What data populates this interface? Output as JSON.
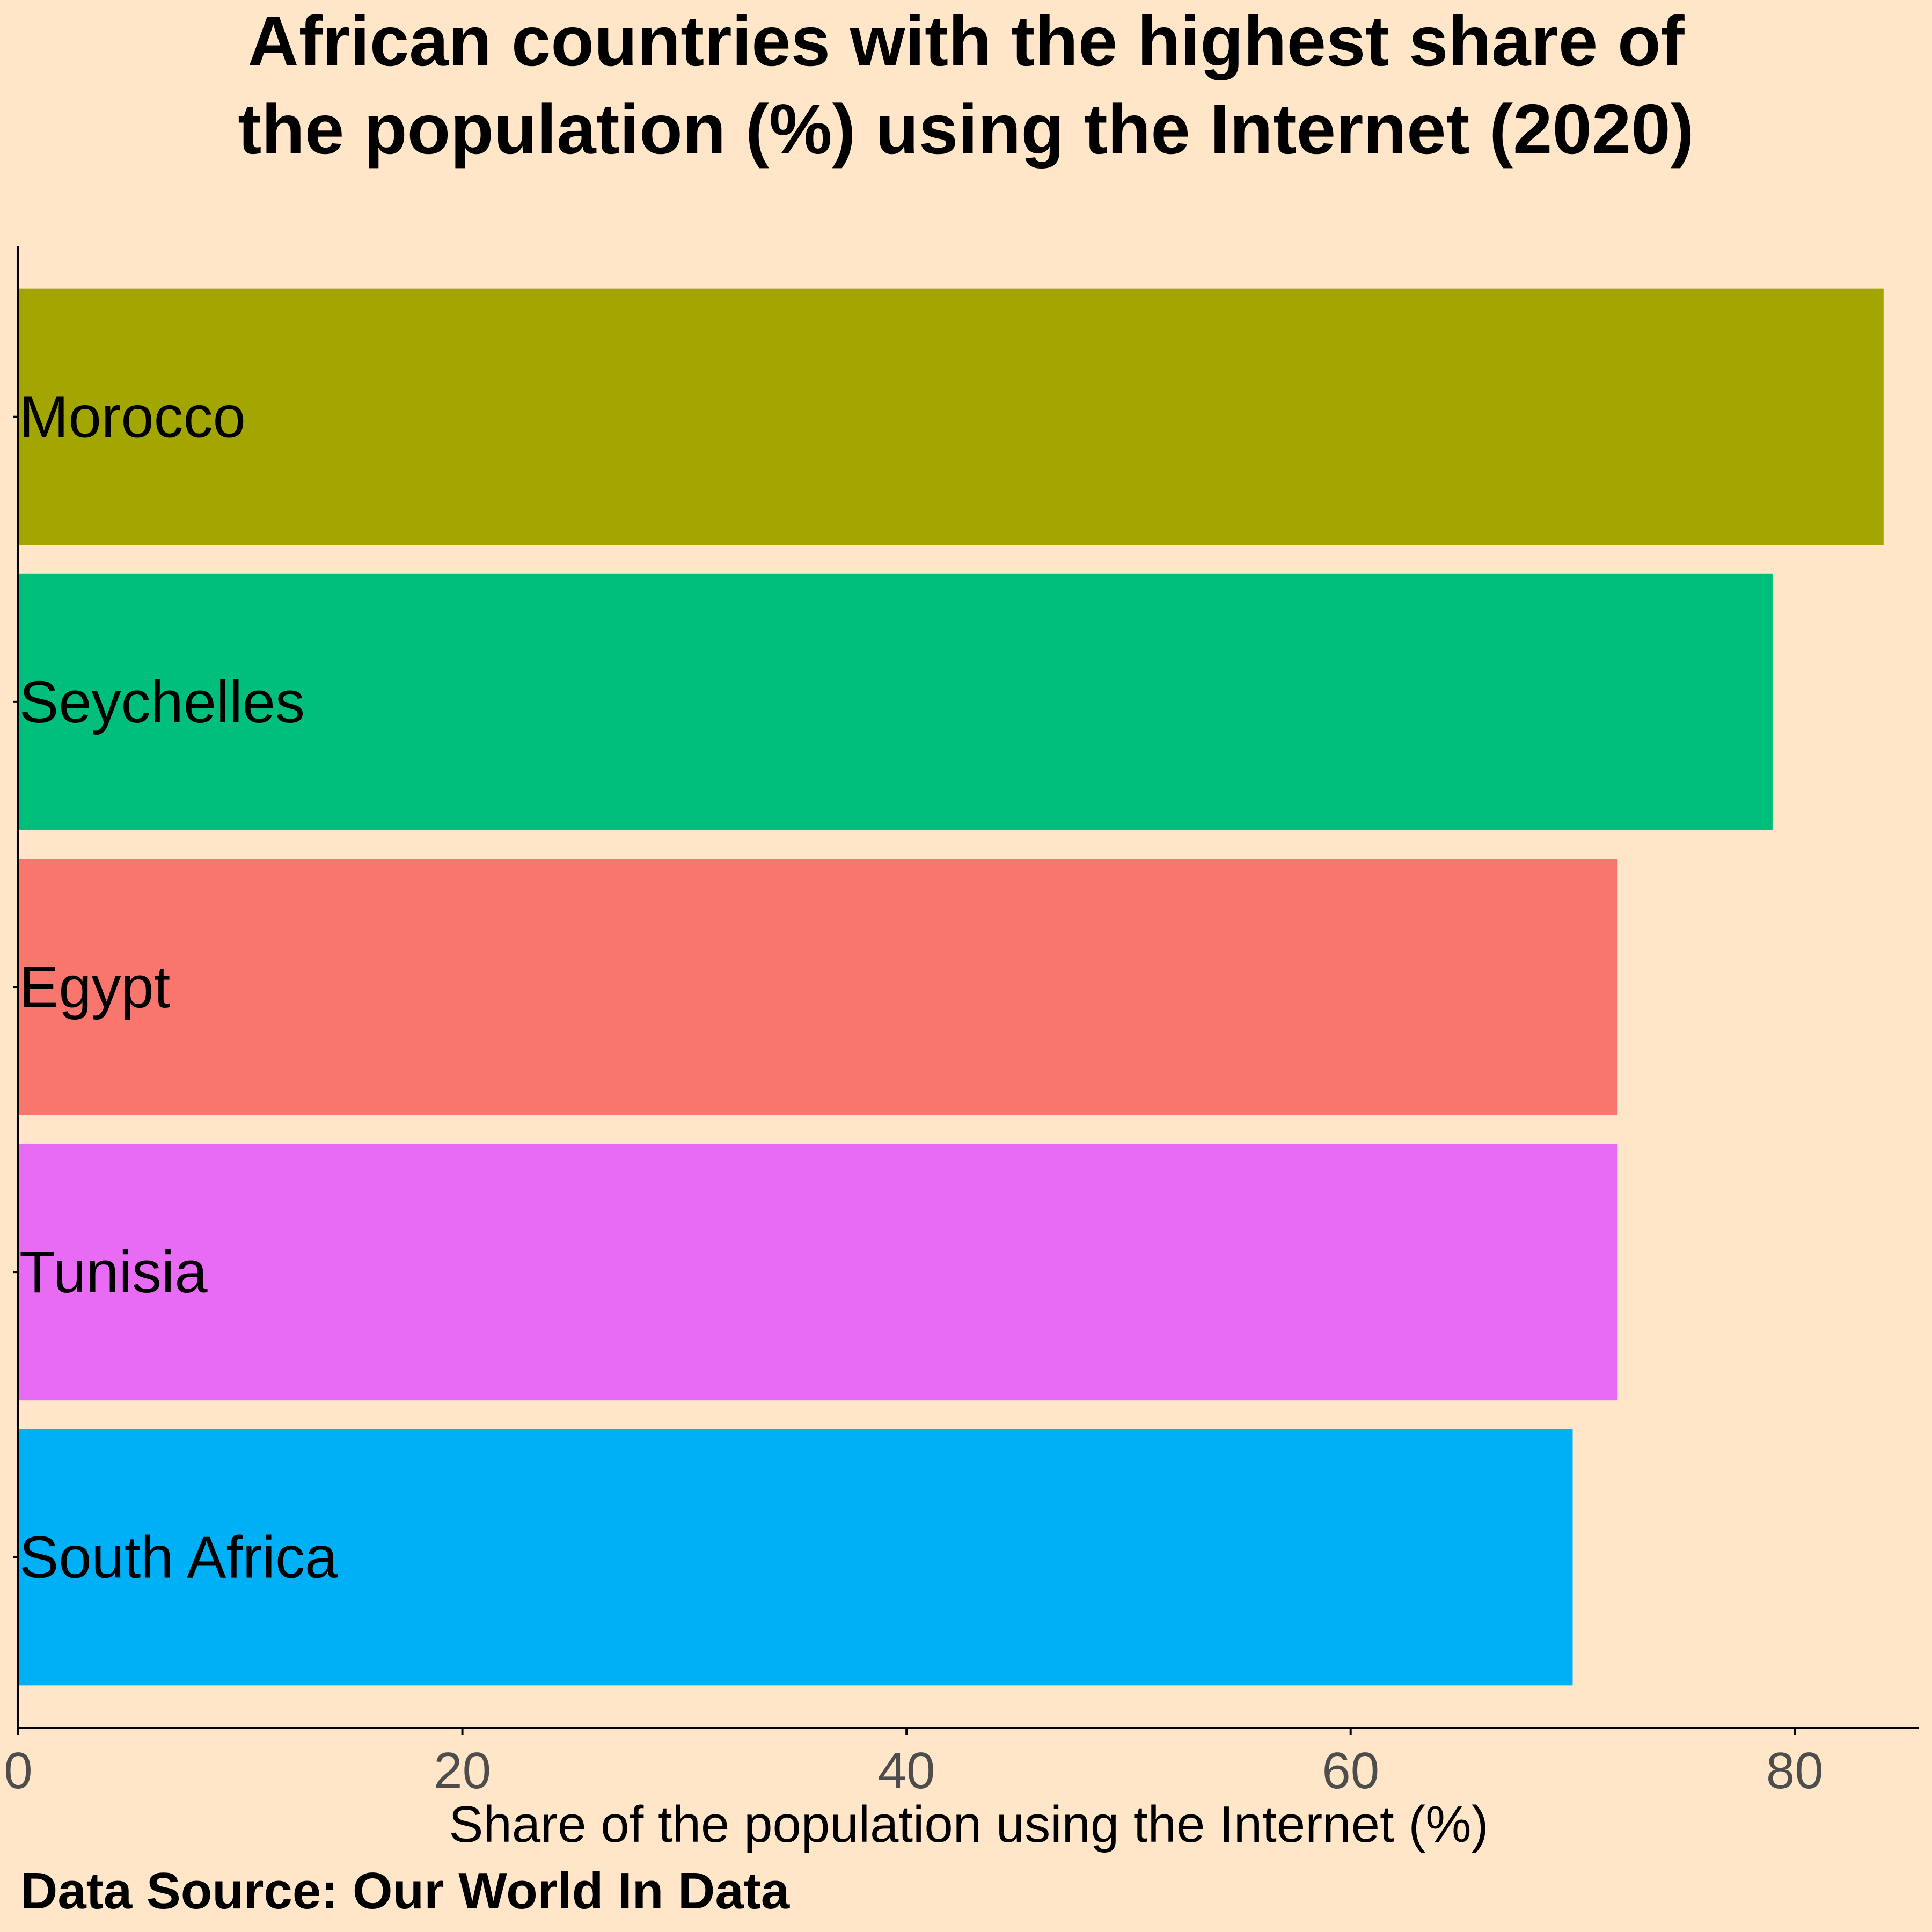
{
  "chart_data": {
    "type": "bar",
    "orientation": "horizontal",
    "title_lines": [
      "African countries with the highest share of",
      "the population (%) using the Internet (2020)"
    ],
    "xlabel": "Share of the population using the Internet (%)",
    "ylabel": "",
    "caption": "Data Source: Our World In Data",
    "xlim": [
      0,
      85.6
    ],
    "xticks": [
      0,
      20,
      40,
      60,
      80
    ],
    "grid": false,
    "legend": "none",
    "categories": [
      "Morocco",
      "Seychelles",
      "Egypt",
      "Tunisia",
      "South Africa"
    ],
    "values": [
      84,
      79,
      72,
      72,
      70
    ],
    "colors": [
      "#A3A500",
      "#00BF7D",
      "#F8766D",
      "#E76BF3",
      "#00B0F6"
    ]
  },
  "background_color": "#FFE6C8"
}
